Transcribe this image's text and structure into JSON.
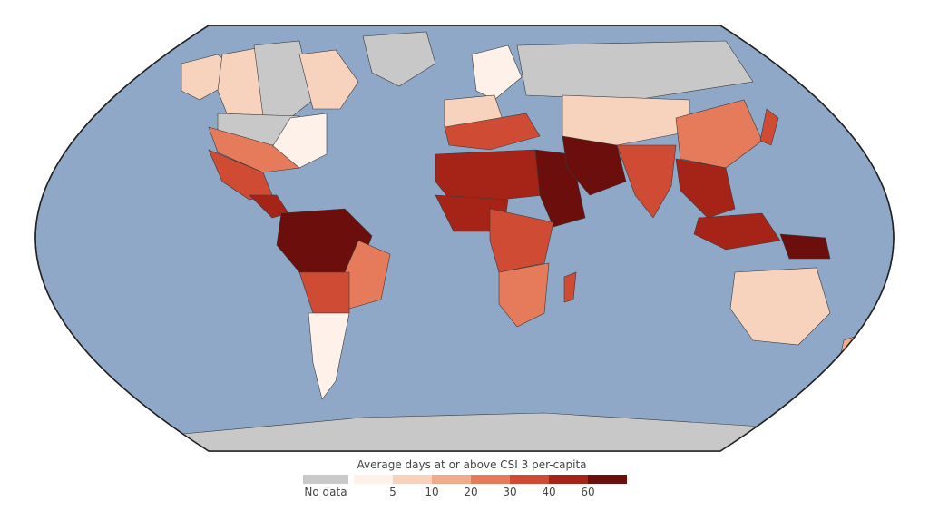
{
  "map": {
    "ocean_color": "#8fa8c8",
    "land_nodata_color": "#c8c8c8",
    "border_color": "#333333"
  },
  "legend": {
    "title": "Average days at or above CSI 3 per-capita",
    "nodata_label": "No data",
    "nodata_color": "#c8c8c8",
    "ramp_colors": [
      "#fdf1ea",
      "#f7d2bd",
      "#f1aa8a",
      "#e57b5b",
      "#cf4b34",
      "#a52417",
      "#6b0e0c"
    ],
    "ticks": [
      "5",
      "10",
      "20",
      "30",
      "40",
      "60"
    ]
  }
}
